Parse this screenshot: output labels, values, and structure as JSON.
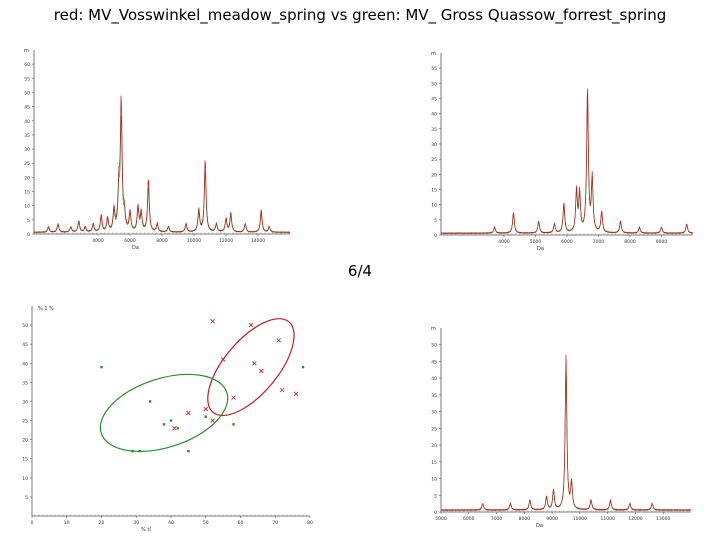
{
  "title": "red: MV_Vosswinkel_meadow_spring vs green: MV_ Gross Quassow_forrest_spring",
  "slide_number": "6/4",
  "chart_data": [
    {
      "type": "line",
      "name_hint": "top-left spectrum",
      "ylabel": "m",
      "xlabel": "Da",
      "xlim": [
        0,
        16000
      ],
      "ylim": [
        0,
        65
      ],
      "x_ticks": [
        4000,
        6000,
        8000,
        10000,
        12000,
        14000
      ],
      "x_tick_labels": [
        "4000",
        "6000",
        "8000",
        "10000",
        "12000",
        "14000"
      ],
      "y_ticks": [
        0,
        5,
        10,
        15,
        20,
        25,
        30,
        35,
        40,
        45,
        50,
        55,
        60
      ],
      "colors": {
        "red": "#b22222",
        "green": "#2e8b2e"
      },
      "peaks": [
        {
          "x": 900,
          "h": 2
        },
        {
          "x": 1500,
          "h": 3
        },
        {
          "x": 2300,
          "h": 2
        },
        {
          "x": 2800,
          "h": 4
        },
        {
          "x": 3200,
          "h": 2
        },
        {
          "x": 3700,
          "h": 3
        },
        {
          "x": 4200,
          "h": 6
        },
        {
          "x": 4600,
          "h": 5
        },
        {
          "x": 5000,
          "h": 8
        },
        {
          "x": 5300,
          "h": 15
        },
        {
          "x": 5450,
          "h": 46
        },
        {
          "x": 5650,
          "h": 6
        },
        {
          "x": 6000,
          "h": 7
        },
        {
          "x": 6500,
          "h": 9
        },
        {
          "x": 6700,
          "h": 7
        },
        {
          "x": 7150,
          "h": 19
        },
        {
          "x": 7700,
          "h": 3
        },
        {
          "x": 8400,
          "h": 2
        },
        {
          "x": 9500,
          "h": 3
        },
        {
          "x": 10300,
          "h": 8
        },
        {
          "x": 10700,
          "h": 26
        },
        {
          "x": 11400,
          "h": 3
        },
        {
          "x": 12000,
          "h": 5
        },
        {
          "x": 12300,
          "h": 7
        },
        {
          "x": 13200,
          "h": 3
        },
        {
          "x": 14200,
          "h": 8
        },
        {
          "x": 14700,
          "h": 2
        }
      ]
    },
    {
      "type": "line",
      "name_hint": "top-right spectrum",
      "ylabel": "m",
      "xlabel": "Da",
      "xlim": [
        2000,
        10000
      ],
      "ylim": [
        0,
        60
      ],
      "x_ticks": [
        4000,
        5000,
        6000,
        7000,
        8000,
        9000
      ],
      "x_tick_labels": [
        "4000",
        "5000",
        "6000",
        "7000",
        "8000",
        "9000"
      ],
      "y_ticks": [
        0,
        5,
        10,
        15,
        20,
        25,
        30,
        35,
        40,
        45,
        50,
        55
      ],
      "peaks": [
        {
          "x": 3700,
          "h": 2
        },
        {
          "x": 4300,
          "h": 7
        },
        {
          "x": 5100,
          "h": 4
        },
        {
          "x": 5600,
          "h": 3
        },
        {
          "x": 5900,
          "h": 10
        },
        {
          "x": 6300,
          "h": 14
        },
        {
          "x": 6400,
          "h": 13
        },
        {
          "x": 6650,
          "h": 48
        },
        {
          "x": 6800,
          "h": 18
        },
        {
          "x": 7100,
          "h": 7
        },
        {
          "x": 7700,
          "h": 4
        },
        {
          "x": 8300,
          "h": 2
        },
        {
          "x": 9000,
          "h": 2
        },
        {
          "x": 9800,
          "h": 3
        }
      ]
    },
    {
      "type": "scatter",
      "name_hint": "bottom-left score plot",
      "legend": "% 1 %",
      "xlabel": "% t(",
      "xlim": [
        0,
        80
      ],
      "ylim": [
        0,
        55
      ],
      "x_ticks": [
        0,
        10,
        20,
        30,
        40,
        50,
        60,
        70,
        80
      ],
      "y_ticks": [
        5,
        10,
        15,
        20,
        25,
        30,
        35,
        40,
        45,
        50
      ],
      "series": [
        {
          "name": "red",
          "points": [
            [
              52,
              51
            ],
            [
              63,
              50
            ],
            [
              71,
              46
            ],
            [
              55,
              41
            ],
            [
              64,
              40
            ],
            [
              66,
              38
            ],
            [
              72,
              33
            ],
            [
              76,
              32
            ],
            [
              58,
              31
            ],
            [
              41,
              23
            ],
            [
              50,
              28
            ],
            [
              45,
              27
            ],
            [
              52,
              25
            ]
          ]
        },
        {
          "name": "green",
          "points": [
            [
              20,
              39
            ],
            [
              29,
              17
            ],
            [
              31,
              17
            ],
            [
              34,
              30
            ],
            [
              38,
              24
            ],
            [
              40,
              25
            ],
            [
              42,
              23
            ],
            [
              45,
              17
            ],
            [
              50,
              26
            ],
            [
              58,
              24
            ],
            [
              78,
              39
            ]
          ]
        }
      ],
      "ellipses": [
        {
          "name": "red",
          "cx": 63,
          "cy": 39,
          "rx": 17,
          "ry": 7,
          "angle_deg": 50
        },
        {
          "name": "green",
          "cx": 38,
          "cy": 27,
          "rx": 19,
          "ry": 9,
          "angle_deg": 18
        }
      ]
    },
    {
      "type": "line",
      "name_hint": "bottom-right spectrum",
      "ylabel": "m",
      "xlabel": "Da",
      "xlim": [
        5000,
        14000
      ],
      "ylim": [
        0,
        55
      ],
      "x_ticks": [
        5000,
        6000,
        7000,
        8000,
        9000,
        10000,
        11000,
        12000,
        13000
      ],
      "x_tick_labels": [
        "5000",
        "6000",
        "7000",
        "8000",
        "9000",
        "10000",
        "11000",
        "12000",
        "13000"
      ],
      "y_ticks": [
        0,
        5,
        10,
        15,
        20,
        25,
        30,
        35,
        40,
        45,
        50
      ],
      "peaks": [
        {
          "x": 6500,
          "h": 2
        },
        {
          "x": 7500,
          "h": 2
        },
        {
          "x": 8200,
          "h": 3
        },
        {
          "x": 8800,
          "h": 4
        },
        {
          "x": 9050,
          "h": 6
        },
        {
          "x": 9500,
          "h": 46
        },
        {
          "x": 9700,
          "h": 8
        },
        {
          "x": 10400,
          "h": 3
        },
        {
          "x": 11100,
          "h": 3
        },
        {
          "x": 11800,
          "h": 2
        },
        {
          "x": 12600,
          "h": 2
        }
      ]
    }
  ]
}
